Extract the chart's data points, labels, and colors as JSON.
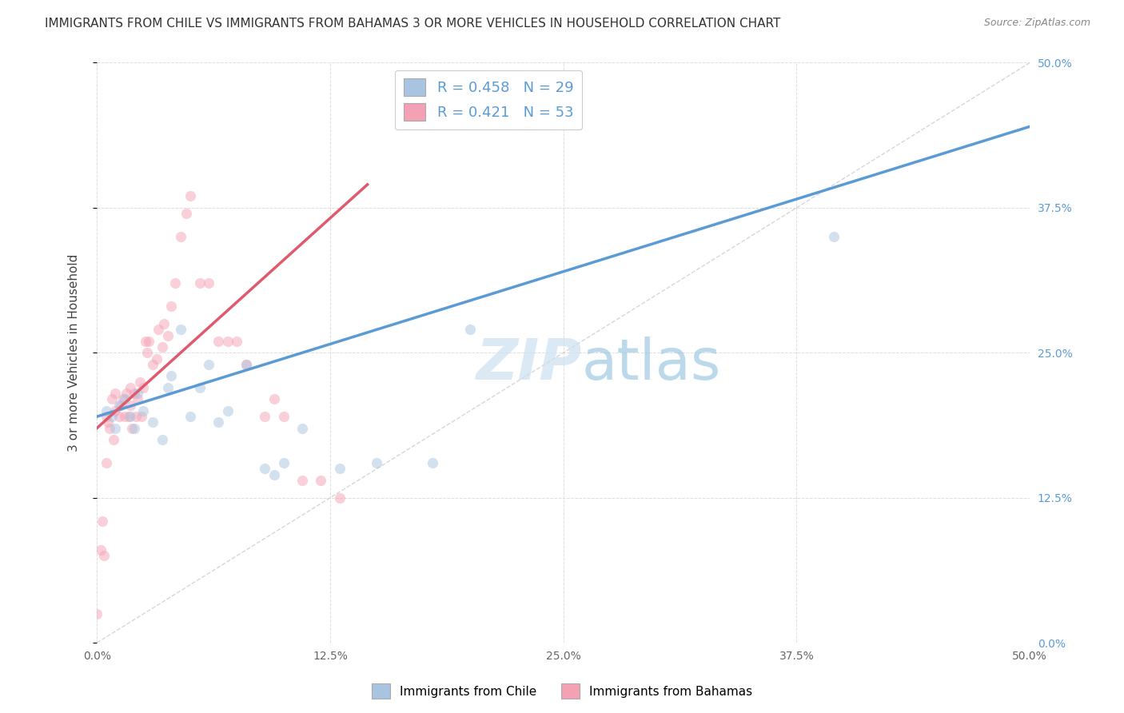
{
  "title": "IMMIGRANTS FROM CHILE VS IMMIGRANTS FROM BAHAMAS 3 OR MORE VEHICLES IN HOUSEHOLD CORRELATION CHART",
  "source": "Source: ZipAtlas.com",
  "ylabel": "3 or more Vehicles in Household",
  "xlim": [
    0.0,
    0.5
  ],
  "ylim": [
    0.0,
    0.5
  ],
  "xtick_labels": [
    "0.0%",
    "12.5%",
    "25.0%",
    "37.5%",
    "50.0%"
  ],
  "ytick_labels_right": [
    "50.0%",
    "37.5%",
    "25.0%",
    "12.5%",
    ""
  ],
  "xtick_values": [
    0.0,
    0.125,
    0.25,
    0.375,
    0.5
  ],
  "ytick_values": [
    0.0,
    0.125,
    0.25,
    0.375,
    0.5
  ],
  "legend_label1": "Immigrants from Chile",
  "legend_label2": "Immigrants from Bahamas",
  "r1": 0.458,
  "n1": 29,
  "r2": 0.421,
  "n2": 53,
  "color1": "#a8c4e0",
  "color2": "#f4a0b5",
  "line_color1": "#5b9bd5",
  "line_color2": "#e05a6e",
  "title_fontsize": 11,
  "source_fontsize": 9,
  "scatter_size": 90,
  "scatter_alpha": 0.5,
  "blue_x": [
    0.005,
    0.008,
    0.01,
    0.012,
    0.015,
    0.018,
    0.02,
    0.022,
    0.025,
    0.03,
    0.035,
    0.038,
    0.04,
    0.045,
    0.05,
    0.055,
    0.06,
    0.065,
    0.07,
    0.08,
    0.09,
    0.095,
    0.1,
    0.11,
    0.13,
    0.15,
    0.18,
    0.2,
    0.395
  ],
  "blue_y": [
    0.2,
    0.195,
    0.185,
    0.205,
    0.21,
    0.195,
    0.185,
    0.215,
    0.2,
    0.19,
    0.175,
    0.22,
    0.23,
    0.27,
    0.195,
    0.22,
    0.24,
    0.19,
    0.2,
    0.24,
    0.15,
    0.145,
    0.155,
    0.185,
    0.15,
    0.155,
    0.155,
    0.27,
    0.35
  ],
  "pink_x": [
    0.0,
    0.002,
    0.004,
    0.005,
    0.006,
    0.007,
    0.008,
    0.009,
    0.01,
    0.01,
    0.012,
    0.013,
    0.014,
    0.015,
    0.016,
    0.017,
    0.018,
    0.018,
    0.019,
    0.02,
    0.021,
    0.022,
    0.023,
    0.024,
    0.025,
    0.026,
    0.027,
    0.028,
    0.03,
    0.032,
    0.033,
    0.035,
    0.036,
    0.038,
    0.04,
    0.042,
    0.045,
    0.048,
    0.05,
    0.055,
    0.06,
    0.065,
    0.07,
    0.075,
    0.08,
    0.09,
    0.095,
    0.1,
    0.11,
    0.12,
    0.13,
    0.005,
    0.003
  ],
  "pink_y": [
    0.025,
    0.08,
    0.075,
    0.195,
    0.19,
    0.185,
    0.21,
    0.175,
    0.215,
    0.2,
    0.195,
    0.205,
    0.21,
    0.195,
    0.215,
    0.195,
    0.205,
    0.22,
    0.185,
    0.215,
    0.195,
    0.21,
    0.225,
    0.195,
    0.22,
    0.26,
    0.25,
    0.26,
    0.24,
    0.245,
    0.27,
    0.255,
    0.275,
    0.265,
    0.29,
    0.31,
    0.35,
    0.37,
    0.385,
    0.31,
    0.31,
    0.26,
    0.26,
    0.26,
    0.24,
    0.195,
    0.21,
    0.195,
    0.14,
    0.14,
    0.125,
    0.155,
    0.105
  ],
  "blue_line_x": [
    0.0,
    0.5
  ],
  "blue_line_y": [
    0.195,
    0.445
  ],
  "pink_line_x": [
    0.0,
    0.145
  ],
  "pink_line_y": [
    0.185,
    0.395
  ],
  "diag_line_color": "#cccccc",
  "watermark_color": "#cce0f0",
  "watermark_alpha": 0.7
}
